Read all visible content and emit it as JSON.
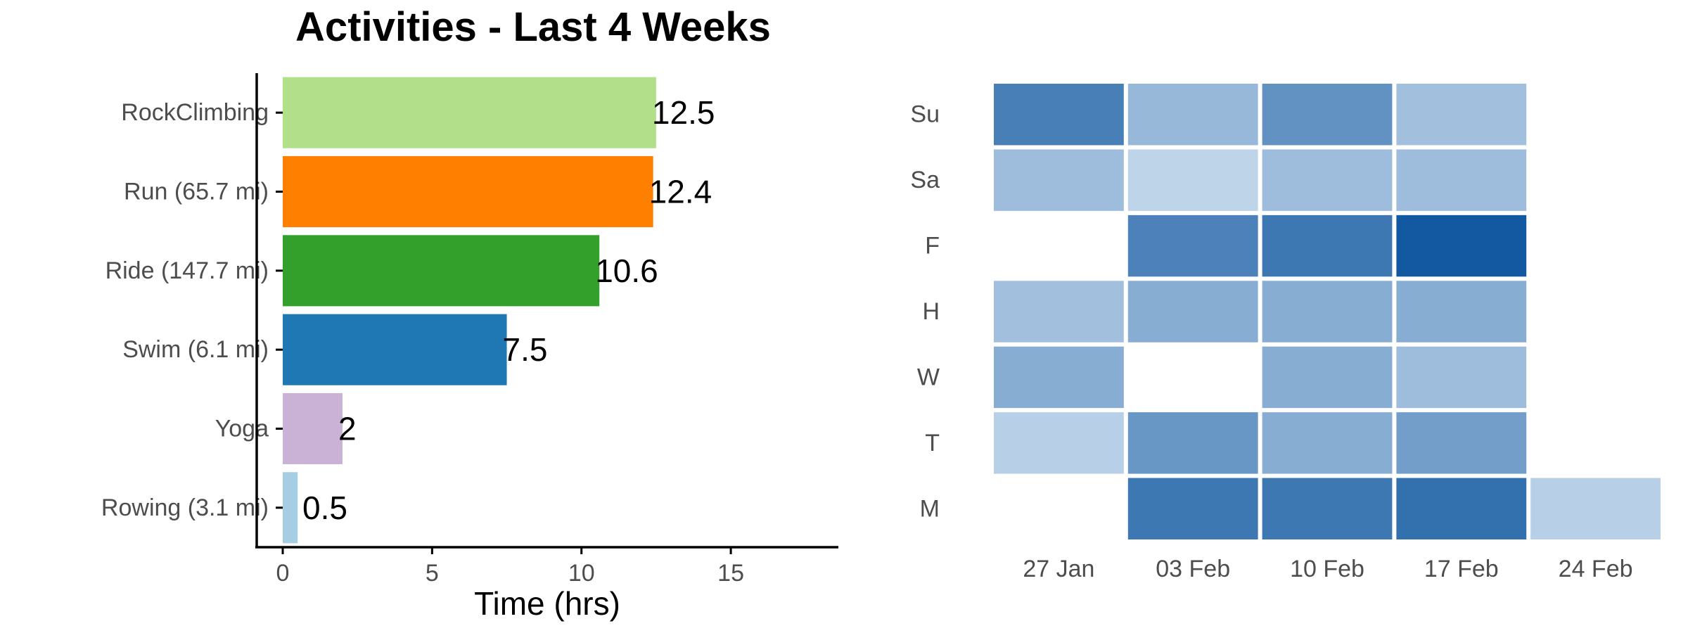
{
  "chart_data": [
    {
      "type": "bar",
      "orientation": "horizontal",
      "title": "Activities - Last 4 Weeks",
      "xlabel": "Time (hrs)",
      "ylabel": "",
      "xlim": [
        0,
        18.6
      ],
      "xticks": [
        0,
        5,
        10,
        15
      ],
      "categories": [
        "RockClimbing",
        "Run (65.7 mi)",
        "Ride (147.7 mi)",
        "Swim (6.1 mi)",
        "Yoga",
        "Rowing (3.1 mi)"
      ],
      "values": [
        12.5,
        12.4,
        10.6,
        7.5,
        2,
        0.5
      ],
      "value_labels": [
        "12.5",
        "12.4",
        "10.6",
        "7.5",
        "2",
        "0.5"
      ],
      "colors": [
        "#b2df8a",
        "#ff7f00",
        "#33a02c",
        "#1f78b4",
        "#cab2d6",
        "#a6cee3"
      ],
      "grid": false
    },
    {
      "type": "heatmap",
      "title": "",
      "xlabel": "",
      "ylabel": "",
      "x": [
        "27 Jan",
        "03 Feb",
        "10 Feb",
        "17 Feb",
        "24 Feb"
      ],
      "y": [
        "Su",
        "Sa",
        "F",
        "H",
        "W",
        "T",
        "M"
      ],
      "values": [
        [
          0.7,
          0.33,
          0.58,
          0.28,
          null
        ],
        [
          0.3,
          0.15,
          0.3,
          0.3,
          null
        ],
        [
          null,
          0.68,
          0.75,
          0.95,
          null
        ],
        [
          0.28,
          0.4,
          0.4,
          0.4,
          null
        ],
        [
          0.4,
          null,
          0.4,
          0.3,
          null
        ],
        [
          0.18,
          0.55,
          0.4,
          0.5,
          null
        ],
        [
          null,
          0.75,
          0.75,
          0.8,
          0.18
        ]
      ],
      "colorscale": [
        "#deebf7",
        "#08519c"
      ],
      "grid": false,
      "legend": "none"
    }
  ]
}
